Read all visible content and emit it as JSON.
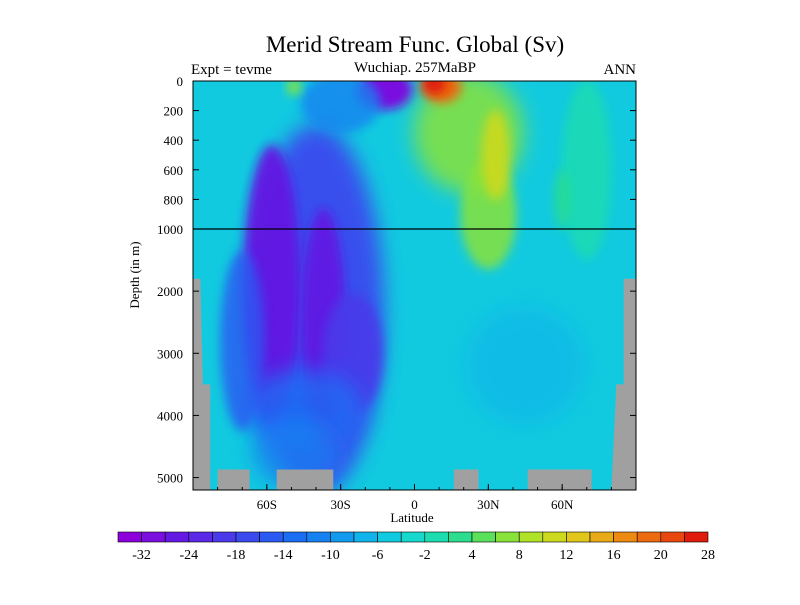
{
  "chart_data": {
    "type": "heatmap",
    "title": "Merid Stream Func. Global (Sv)",
    "subtitle": "Wuchiap. 257MaBP",
    "left_label": "Expt = tevme",
    "right_label": "ANN",
    "xlabel": "Latitude",
    "ylabel": "Depth (in m)",
    "xlim": [
      -90,
      90
    ],
    "x_ticks": [
      {
        "value": -60,
        "label": "60S"
      },
      {
        "value": -30,
        "label": "30S"
      },
      {
        "value": 0,
        "label": "0"
      },
      {
        "value": 30,
        "label": "30N"
      },
      {
        "value": 60,
        "label": "60N"
      }
    ],
    "y_ticks_upper": [
      {
        "value": 0,
        "label": "0"
      },
      {
        "value": 200,
        "label": "200"
      },
      {
        "value": 400,
        "label": "400"
      },
      {
        "value": 600,
        "label": "600"
      },
      {
        "value": 800,
        "label": "800"
      },
      {
        "value": 1000,
        "label": "1000"
      }
    ],
    "y_ticks_lower": [
      {
        "value": 2000,
        "label": "2000"
      },
      {
        "value": 3000,
        "label": "3000"
      },
      {
        "value": 4000,
        "label": "4000"
      },
      {
        "value": 5000,
        "label": "5000"
      }
    ],
    "ylim": [
      0,
      5200
    ],
    "axis_break_depth": 1000,
    "colorbar": {
      "labels": [
        "-32",
        "-24",
        "-18",
        "-14",
        "-10",
        "-6",
        "-2",
        "4",
        "8",
        "12",
        "16",
        "20",
        "28"
      ],
      "colors": [
        "#8c00dc",
        "#7a0fdf",
        "#6419e2",
        "#5a28e6",
        "#4a3aea",
        "#3a4aef",
        "#2a5af2",
        "#1a6ef4",
        "#1682f1",
        "#129bee",
        "#10b4ea",
        "#12cadf",
        "#16d8cc",
        "#1ddcaf",
        "#2bdd8c",
        "#5ae05a",
        "#88e23a",
        "#b0e228",
        "#cdd91e",
        "#e0c71a",
        "#e8aa16",
        "#ec8a12",
        "#ec6a10",
        "#e8480e",
        "#e01a0c"
      ]
    },
    "background_value_color": "#12cadf",
    "land_color": "#a0a0a0",
    "features": [
      {
        "name": "deep southern cell core",
        "lat": -45,
        "depth": 2000,
        "value": -28,
        "color": "#6419e2"
      },
      {
        "name": "shallow southern cell",
        "lat": -12,
        "depth": 50,
        "value": -32,
        "color": "#7a0fdf"
      },
      {
        "name": "northern surface cell",
        "lat": 12,
        "depth": 50,
        "value": 28,
        "color": "#e01a0c"
      },
      {
        "name": "northern intermediate cell",
        "lat": 30,
        "depth": 600,
        "value": 14,
        "color": "#cdd91e"
      }
    ]
  }
}
